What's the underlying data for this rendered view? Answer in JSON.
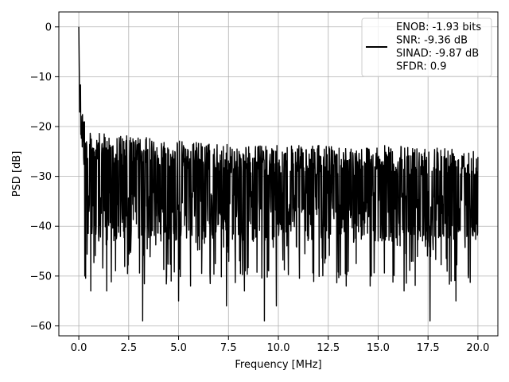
{
  "chart_data": {
    "type": "line",
    "xlabel": "Frequency [MHz]",
    "ylabel": "PSD [dB]",
    "xlim": [
      -1.0,
      21.0
    ],
    "ylim": [
      -62.0,
      3.0
    ],
    "grid": true,
    "legend_position": "top-right",
    "x_ticks": [
      0.0,
      2.5,
      5.0,
      7.5,
      10.0,
      12.5,
      15.0,
      17.5,
      20.0
    ],
    "x_tick_labels": [
      "0.0",
      "2.5",
      "5.0",
      "7.5",
      "10.0",
      "12.5",
      "15.0",
      "17.5",
      "20.0"
    ],
    "y_ticks": [
      0,
      -10,
      -20,
      -30,
      -40,
      -50,
      -60
    ],
    "y_tick_labels": [
      "0",
      "−10",
      "−20",
      "−30",
      "−40",
      "−50",
      "−60"
    ],
    "series": [
      {
        "color": "#000000",
        "legend_lines": [
          "ENOB: -1.93 bits",
          "SNR: -9.36 dB",
          "SINAD: -9.87 dB",
          "SFDR: 0.9"
        ],
        "x_range": [
          0.0,
          20.0
        ],
        "noise_floor_db": [
          -20,
          -56
        ],
        "typical_db": -30,
        "peaks": [
          {
            "x": 0.0,
            "y": 0.0
          },
          {
            "x": 0.05,
            "y": -6
          },
          {
            "x": 0.1,
            "y": -11
          },
          {
            "x": 0.2,
            "y": -16
          },
          {
            "x": 0.3,
            "y": -18
          }
        ],
        "deep_dips": [
          {
            "x": 0.3,
            "y": -50
          },
          {
            "x": 0.6,
            "y": -53
          },
          {
            "x": 1.4,
            "y": -53
          },
          {
            "x": 3.2,
            "y": -59
          },
          {
            "x": 4.4,
            "y": -50
          },
          {
            "x": 5.0,
            "y": -55
          },
          {
            "x": 5.6,
            "y": -52
          },
          {
            "x": 7.4,
            "y": -56
          },
          {
            "x": 8.3,
            "y": -53
          },
          {
            "x": 9.3,
            "y": -59
          },
          {
            "x": 9.9,
            "y": -56
          },
          {
            "x": 13.4,
            "y": -52
          },
          {
            "x": 14.6,
            "y": -52
          },
          {
            "x": 16.3,
            "y": -53
          },
          {
            "x": 17.6,
            "y": -59
          },
          {
            "x": 18.9,
            "y": -55
          }
        ]
      }
    ]
  }
}
